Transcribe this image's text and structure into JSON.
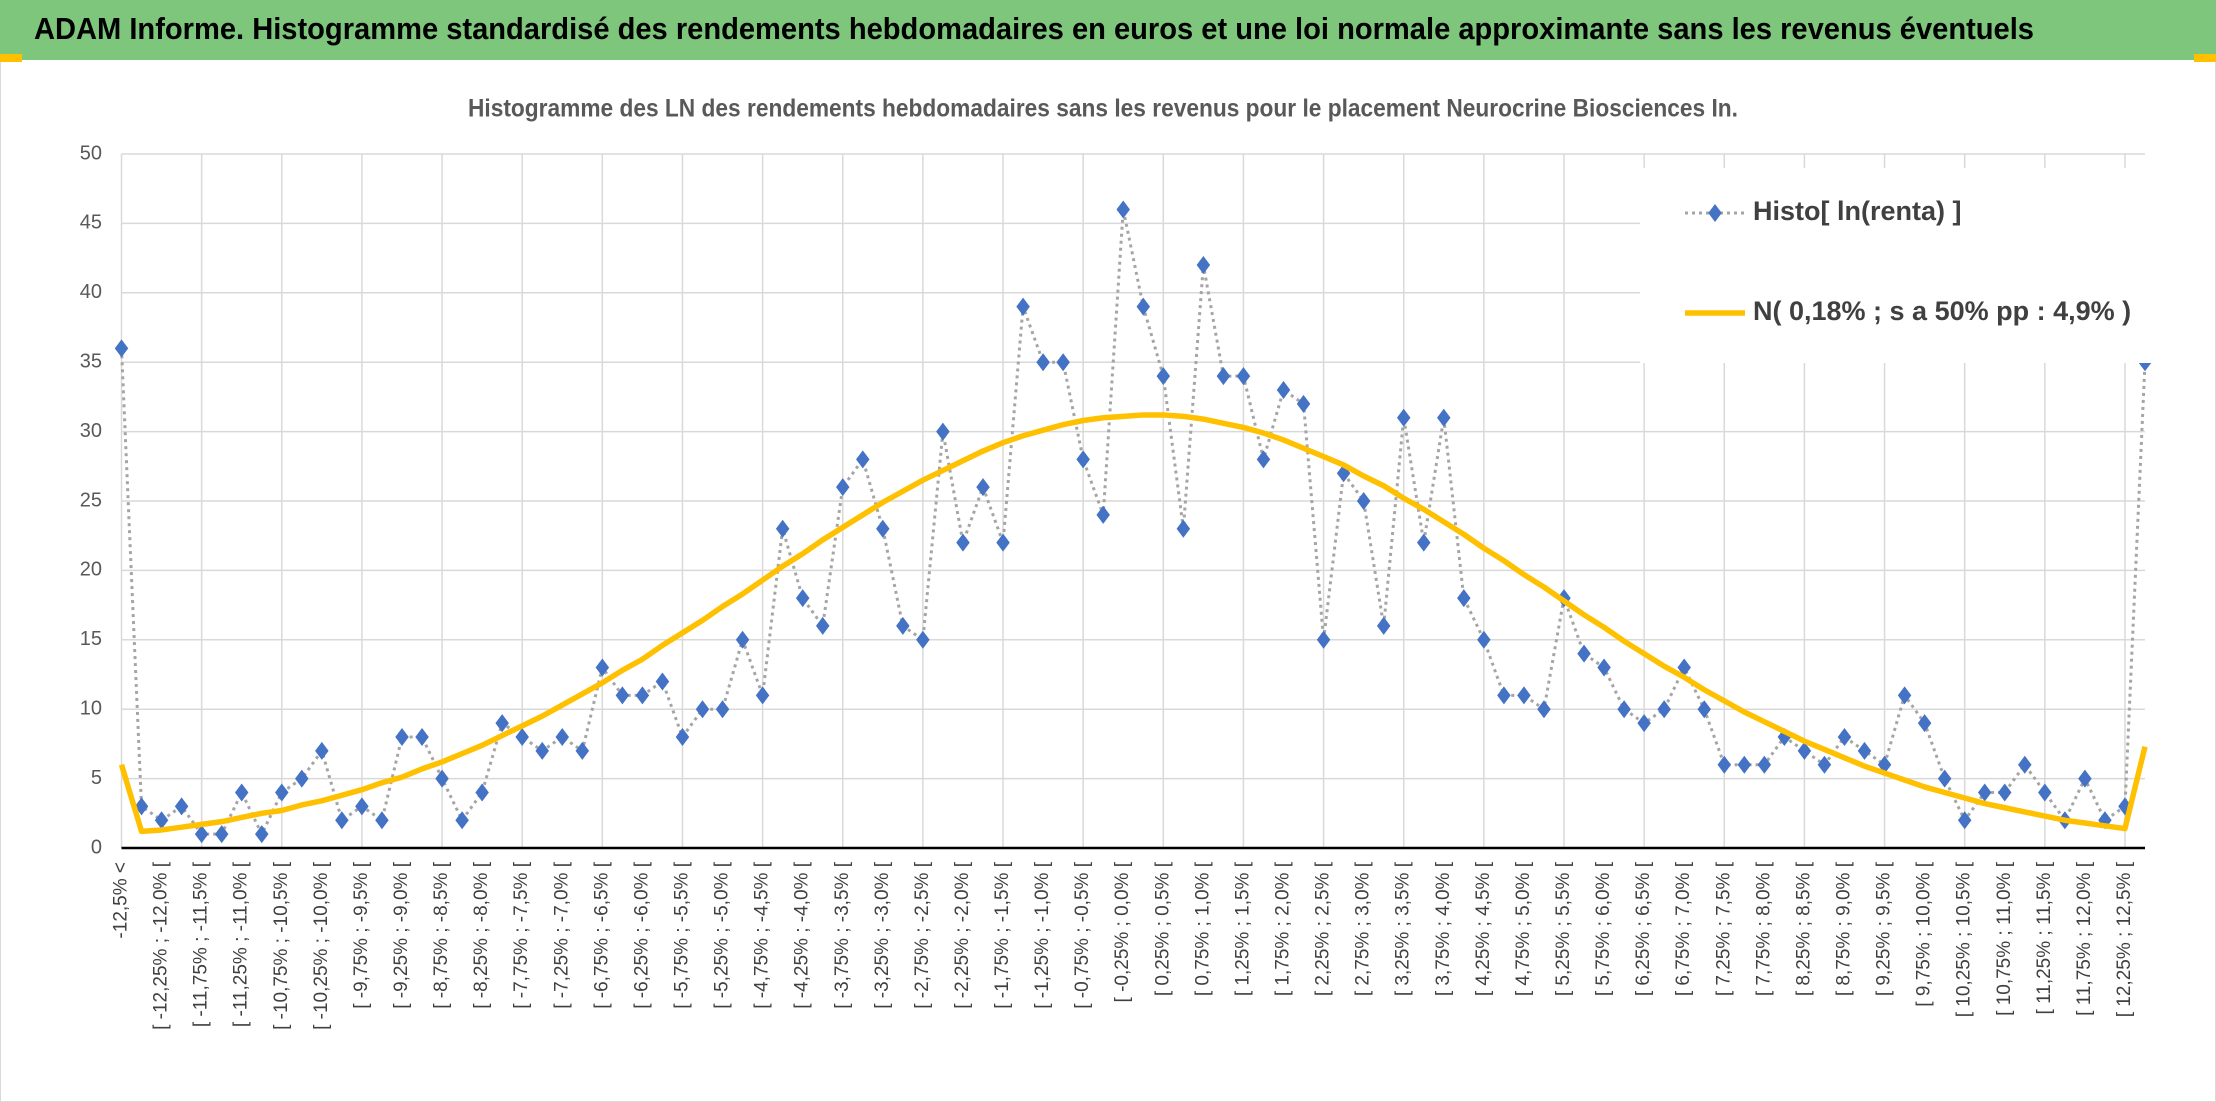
{
  "header": {
    "title": "ADAM Informe. Histogramme standardisé des rendements hebdomadaires en euros et une loi normale approximante sans les revenus éventuels"
  },
  "chart_data": {
    "type": "line",
    "title": "Histogramme des LN des rendements hebdomadaires sans les revenus pour le placement Neurocrine Biosciences In.",
    "categories": [
      "-12,5% <",
      null,
      "[ -12,25% ; -12,0% [",
      null,
      "[ -11,75% ; -11,5% [",
      null,
      "[ -11,25% ; -11,0% [",
      null,
      "[ -10,75% ; -10,5% [",
      null,
      "[ -10,25% ; -10,0% [",
      null,
      "[ -9,75% ; -9,5% [",
      null,
      "[ -9,25% ; -9,0% [",
      null,
      "[ -8,75% ; -8,5% [",
      null,
      "[ -8,25% ; -8,0% [",
      null,
      "[ -7,75% ; -7,5% [",
      null,
      "[ -7,25% ; -7,0% [",
      null,
      "[ -6,75% ; -6,5% [",
      null,
      "[ -6,25% ; -6,0% [",
      null,
      "[ -5,75% ; -5,5% [",
      null,
      "[ -5,25% ; -5,0% [",
      null,
      "[ -4,75% ; -4,5% [",
      null,
      "[ -4,25% ; -4,0% [",
      null,
      "[ -3,75% ; -3,5% [",
      null,
      "[ -3,25% ; -3,0% [",
      null,
      "[ -2,75% ; -2,5% [",
      null,
      "[ -2,25% ; -2,0% [",
      null,
      "[ -1,75% ; -1,5% [",
      null,
      "[ -1,25% ; -1,0% [",
      null,
      "[ -0,75% ; -0,5% [",
      null,
      "[ -0,25% ; 0,0% [",
      null,
      "[ 0,25% ; 0,5% [",
      null,
      "[ 0,75% ; 1,0% [",
      null,
      "[ 1,25% ; 1,5% [",
      null,
      "[ 1,75% ; 2,0% [",
      null,
      "[ 2,25% ; 2,5% [",
      null,
      "[ 2,75% ; 3,0% [",
      null,
      "[ 3,25% ; 3,5% [",
      null,
      "[ 3,75% ; 4,0% [",
      null,
      "[ 4,25% ; 4,5% [",
      null,
      "[ 4,75% ; 5,0% [",
      null,
      "[ 5,25% ; 5,5% [",
      null,
      "[ 5,75% ; 6,0% [",
      null,
      "[ 6,25% ; 6,5% [",
      null,
      "[ 6,75% ; 7,0% [",
      null,
      "[ 7,25% ; 7,5% [",
      null,
      "[ 7,75% ; 8,0% [",
      null,
      "[ 8,25% ; 8,5% [",
      null,
      "[ 8,75% ; 9,0% [",
      null,
      "[ 9,25% ; 9,5% [",
      null,
      "[ 9,75% ; 10,0% [",
      null,
      "[ 10,25% ; 10,5% [",
      null,
      "[ 10,75% ; 11,0% [",
      null,
      "[ 11,25% ; 11,5% [",
      null,
      "[ 11,75% ; 12,0% [",
      null,
      "[ 12,25% ; 12,5% [",
      null
    ],
    "series": [
      {
        "name": "Histo[ ln(renta) ]",
        "color": "#4472c4",
        "line_color": "#a5a5a5",
        "line_style": "dotted",
        "marker": "diamond",
        "values": [
          36,
          3,
          2,
          3,
          1,
          1,
          4,
          1,
          4,
          5,
          7,
          2,
          3,
          2,
          8,
          8,
          5,
          2,
          4,
          9,
          8,
          7,
          8,
          7,
          13,
          11,
          11,
          12,
          8,
          10,
          10,
          15,
          11,
          23,
          18,
          16,
          26,
          28,
          23,
          16,
          15,
          30,
          22,
          26,
          22,
          39,
          35,
          35,
          28,
          24,
          46,
          39,
          34,
          23,
          42,
          34,
          34,
          28,
          33,
          32,
          15,
          27,
          25,
          16,
          31,
          22,
          31,
          18,
          15,
          11,
          11,
          10,
          18,
          14,
          13,
          10,
          9,
          10,
          13,
          10,
          6,
          6,
          6,
          8,
          7,
          6,
          8,
          7,
          6,
          11,
          9,
          5,
          2,
          4,
          4,
          6,
          4,
          2,
          5,
          2,
          3,
          35
        ]
      },
      {
        "name": "N( 0,18% ; s a 50% pp : 4,9% )",
        "color": "#ffc000",
        "line_style": "solid",
        "marker": "none",
        "values": [
          6.0,
          1.2,
          1.3,
          1.5,
          1.7,
          1.9,
          2.2,
          2.5,
          2.7,
          3.1,
          3.4,
          3.8,
          4.2,
          4.7,
          5.1,
          5.7,
          6.2,
          6.8,
          7.4,
          8.1,
          8.8,
          9.5,
          10.3,
          11.1,
          11.9,
          12.8,
          13.6,
          14.6,
          15.5,
          16.4,
          17.4,
          18.3,
          19.3,
          20.3,
          21.2,
          22.2,
          23.1,
          24.0,
          24.9,
          25.7,
          26.5,
          27.2,
          27.9,
          28.6,
          29.2,
          29.7,
          30.1,
          30.5,
          30.8,
          31.0,
          31.1,
          31.2,
          31.2,
          31.1,
          30.9,
          30.6,
          30.3,
          29.9,
          29.4,
          28.8,
          28.2,
          27.6,
          26.8,
          26.1,
          25.2,
          24.4,
          23.5,
          22.6,
          21.6,
          20.7,
          19.7,
          18.8,
          17.8,
          16.8,
          15.9,
          14.9,
          14.0,
          13.1,
          12.3,
          11.4,
          10.6,
          9.8,
          9.1,
          8.4,
          7.7,
          7.1,
          6.5,
          5.9,
          5.4,
          4.9,
          4.4,
          4.0,
          3.6,
          3.2,
          2.9,
          2.6,
          2.3,
          2.0,
          1.8,
          1.6,
          1.4,
          7.3
        ]
      }
    ],
    "ylim": [
      0,
      50
    ],
    "yticks": [
      0,
      5,
      10,
      15,
      20,
      25,
      30,
      35,
      40,
      45,
      50
    ],
    "grid": true,
    "legend": "top-right"
  }
}
